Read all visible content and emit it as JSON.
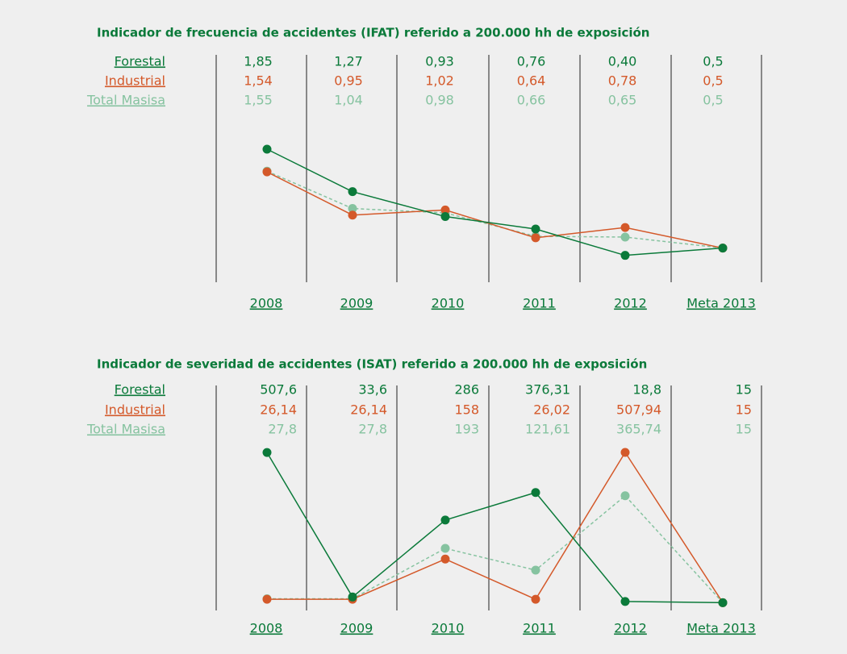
{
  "chart_data": [
    {
      "type": "line",
      "title": "Indicador de frecuencia de accidentes (IFAT) referido a 200.000 hh de exposición",
      "categories": [
        "2008",
        "2009",
        "2010",
        "2011",
        "2012",
        "Meta 2013"
      ],
      "series": [
        {
          "name": "Forestal",
          "color": "#0b7a3a",
          "values": [
            1.85,
            1.27,
            0.93,
            0.76,
            0.4,
            0.5
          ],
          "value_labels": [
            "1,85",
            "1,27",
            "0,93",
            "0,76",
            "0,40",
            "0,5"
          ]
        },
        {
          "name": "Industrial",
          "color": "#d4592a",
          "values": [
            1.54,
            0.95,
            1.02,
            0.64,
            0.78,
            0.5
          ],
          "value_labels": [
            "1,54",
            "0,95",
            "1,02",
            "0,64",
            "0,78",
            "0,5"
          ]
        },
        {
          "name": "Total Masisa",
          "color": "#86c3a0",
          "dashed": true,
          "values": [
            1.55,
            1.04,
            0.98,
            0.66,
            0.65,
            0.5
          ],
          "value_labels": [
            "1,55",
            "1,04",
            "0,98",
            "0,66",
            "0,65",
            "0,5"
          ]
        }
      ]
    },
    {
      "type": "line",
      "title": "Indicador de severidad de accidentes (ISAT) referido a 200.000 hh de exposición",
      "categories": [
        "2008",
        "2009",
        "2010",
        "2011",
        "2012",
        "Meta 2013"
      ],
      "series": [
        {
          "name": "Forestal",
          "color": "#0b7a3a",
          "values": [
            507.6,
            33.6,
            286,
            376.31,
            18.8,
            15
          ],
          "value_labels": [
            "507,6",
            "33,6",
            "286",
            "376,31",
            "18,8",
            "15"
          ]
        },
        {
          "name": "Industrial",
          "color": "#d4592a",
          "values": [
            26.14,
            26.14,
            158,
            26.02,
            507.94,
            15
          ],
          "value_labels": [
            "26,14",
            "26,14",
            "158",
            "26,02",
            "507,94",
            "15"
          ]
        },
        {
          "name": "Total Masisa",
          "color": "#86c3a0",
          "dashed": true,
          "values": [
            27.8,
            27.8,
            193,
            121.61,
            365.74,
            15
          ],
          "value_labels": [
            "27,8",
            "27,8",
            "193",
            "121,61",
            "365,74",
            "15"
          ]
        }
      ]
    }
  ]
}
